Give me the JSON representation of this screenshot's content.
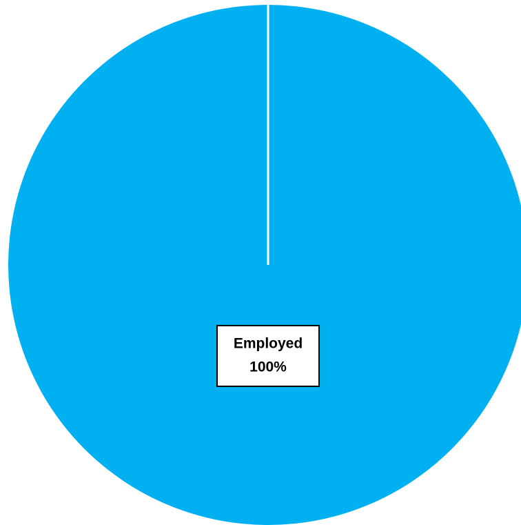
{
  "chart_data": {
    "type": "pie",
    "categories": [
      "Employed"
    ],
    "values": [
      100
    ],
    "value_labels": [
      "100%"
    ],
    "colors": [
      "#00b0f0"
    ]
  }
}
